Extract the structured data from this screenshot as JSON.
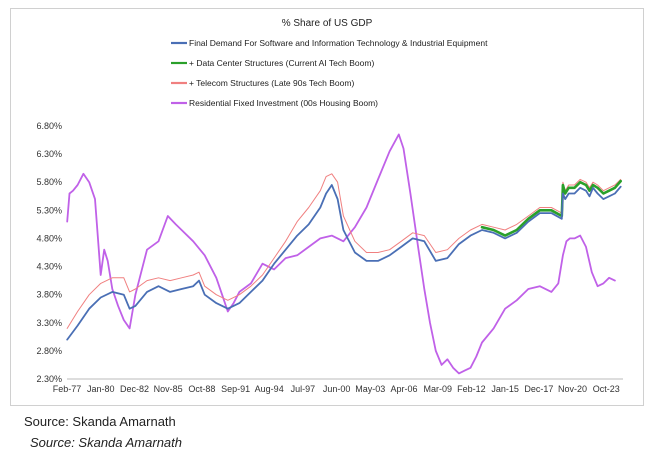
{
  "source_primary": "Source: Skanda Amarnath",
  "source_italic": "Source: Skanda Amarnath",
  "chart_data": {
    "type": "line",
    "title": "% Share of US GDP",
    "xlabel": "",
    "ylabel": "",
    "ylim": [
      2.3,
      6.8
    ],
    "yticks": [
      "6.80%",
      "6.30%",
      "5.80%",
      "5.30%",
      "4.80%",
      "4.30%",
      "3.80%",
      "3.30%",
      "2.80%",
      "2.30%"
    ],
    "ytick_values": [
      6.8,
      6.3,
      5.8,
      5.3,
      4.8,
      4.3,
      3.8,
      3.3,
      2.8,
      2.3
    ],
    "xlim": [
      1977.08,
      2025.2
    ],
    "xticks": [
      "Feb-77",
      "Jan-80",
      "Dec-82",
      "Nov-85",
      "Oct-88",
      "Sep-91",
      "Aug-94",
      "Jul-97",
      "Jun-00",
      "May-03",
      "Apr-06",
      "Mar-09",
      "Feb-12",
      "Jan-15",
      "Dec-17",
      "Nov-20",
      "Oct-23"
    ],
    "xtick_values": [
      1977.08,
      1980.0,
      1982.92,
      1985.83,
      1988.75,
      1991.67,
      1994.58,
      1997.5,
      2000.42,
      2003.33,
      2006.25,
      2009.17,
      2012.08,
      2015.0,
      2017.92,
      2020.83,
      2023.75
    ],
    "grid": false,
    "legend_position": "top",
    "series": [
      {
        "name": "Final Demand For Software and Information Technology & Industrial Equipment",
        "color": "#4a6fb5",
        "x": [
          1977.1,
          1978,
          1979,
          1980,
          1981,
          1982,
          1982.5,
          1983,
          1984,
          1985,
          1986,
          1987,
          1988,
          1988.5,
          1989,
          1990,
          1991,
          1992,
          1993,
          1994,
          1995,
          1996,
          1997,
          1998,
          1999,
          1999.5,
          2000,
          2000.5,
          2001,
          2002,
          2003,
          2004,
          2005,
          2006,
          2007,
          2008,
          2009,
          2010,
          2011,
          2012,
          2013,
          2014,
          2015,
          2016,
          2017,
          2018,
          2019,
          2019.9,
          2020,
          2020.2,
          2020.5,
          2021,
          2021.5,
          2022,
          2022.3,
          2022.6,
          2023,
          2023.5,
          2024,
          2024.5,
          2025
        ],
        "values": [
          3.0,
          3.25,
          3.55,
          3.75,
          3.85,
          3.8,
          3.55,
          3.6,
          3.85,
          3.95,
          3.85,
          3.9,
          3.95,
          4.05,
          3.8,
          3.65,
          3.55,
          3.65,
          3.85,
          4.05,
          4.35,
          4.6,
          4.85,
          5.05,
          5.35,
          5.6,
          5.75,
          5.5,
          4.95,
          4.55,
          4.4,
          4.4,
          4.5,
          4.65,
          4.8,
          4.75,
          4.4,
          4.45,
          4.7,
          4.85,
          4.95,
          4.9,
          4.8,
          4.9,
          5.1,
          5.25,
          5.25,
          5.15,
          5.6,
          5.5,
          5.6,
          5.6,
          5.7,
          5.65,
          5.55,
          5.7,
          5.6,
          5.5,
          5.55,
          5.6,
          5.72
        ]
      },
      {
        "name": "+ Data Center Structures (Current AI Tech Boom)",
        "color": "#2aa02a",
        "x": [
          2013,
          2014,
          2015,
          2016,
          2017,
          2018,
          2019,
          2019.9,
          2020,
          2020.2,
          2020.5,
          2021,
          2021.5,
          2022,
          2022.3,
          2022.6,
          2023,
          2023.5,
          2024,
          2024.5,
          2025
        ],
        "values": [
          5.0,
          4.95,
          4.85,
          4.95,
          5.15,
          5.3,
          5.3,
          5.2,
          5.75,
          5.6,
          5.7,
          5.7,
          5.8,
          5.75,
          5.65,
          5.75,
          5.7,
          5.6,
          5.65,
          5.7,
          5.82
        ]
      },
      {
        "name": "+ Telecom Structures (Late 90s Tech Boom)",
        "color": "#f08080",
        "x": [
          1977.1,
          1978,
          1979,
          1980,
          1981,
          1982,
          1982.5,
          1983,
          1984,
          1985,
          1986,
          1987,
          1988,
          1988.5,
          1989,
          1990,
          1991,
          1992,
          1993,
          1994,
          1995,
          1996,
          1997,
          1998,
          1999,
          1999.5,
          2000,
          2000.5,
          2001,
          2002,
          2003,
          2004,
          2005,
          2006,
          2007,
          2008,
          2009,
          2010,
          2011,
          2012,
          2013,
          2014,
          2015,
          2016,
          2017,
          2018,
          2019,
          2019.9,
          2020,
          2020.2,
          2020.5,
          2021,
          2021.5,
          2022,
          2022.3,
          2022.6,
          2023,
          2023.5,
          2024,
          2024.5,
          2025
        ],
        "values": [
          3.2,
          3.5,
          3.8,
          4.0,
          4.1,
          4.1,
          3.85,
          3.9,
          4.05,
          4.1,
          4.05,
          4.1,
          4.15,
          4.2,
          3.95,
          3.8,
          3.7,
          3.8,
          3.95,
          4.15,
          4.45,
          4.75,
          5.1,
          5.35,
          5.65,
          5.9,
          5.95,
          5.8,
          5.2,
          4.75,
          4.55,
          4.55,
          4.6,
          4.75,
          4.9,
          4.85,
          4.55,
          4.6,
          4.8,
          4.95,
          5.05,
          5.0,
          4.95,
          5.05,
          5.2,
          5.35,
          5.35,
          5.25,
          5.8,
          5.65,
          5.75,
          5.75,
          5.85,
          5.8,
          5.7,
          5.8,
          5.75,
          5.65,
          5.7,
          5.75,
          5.85
        ]
      },
      {
        "name": "Residential Fixed Investment (00s Housing Boom)",
        "color": "#c061e8",
        "x": [
          1977.1,
          1977.3,
          1977.6,
          1978,
          1978.5,
          1979,
          1979.5,
          1980,
          1980.3,
          1980.6,
          1981,
          1981.5,
          1982,
          1982.5,
          1983,
          1984,
          1985,
          1985.8,
          1986.5,
          1987,
          1988,
          1989,
          1990,
          1990.5,
          1991,
          1991.5,
          1992,
          1993,
          1994,
          1995,
          1996,
          1997,
          1998,
          1999,
          2000,
          2001,
          2002,
          2003,
          2004,
          2005,
          2005.8,
          2006.2,
          2006.8,
          2007.5,
          2008,
          2008.5,
          2009,
          2009.5,
          2010,
          2010.5,
          2011,
          2011.5,
          2012,
          2012.5,
          2013,
          2014,
          2015,
          2016,
          2017,
          2018,
          2019,
          2019.6,
          2020,
          2020.3,
          2020.6,
          2021,
          2021.5,
          2022,
          2022.5,
          2023,
          2023.5,
          2024,
          2024.5
        ],
        "values": [
          5.1,
          5.6,
          5.65,
          5.75,
          5.95,
          5.8,
          5.5,
          4.15,
          4.6,
          4.4,
          3.9,
          3.6,
          3.35,
          3.2,
          3.8,
          4.6,
          4.75,
          5.2,
          5.05,
          4.95,
          4.75,
          4.5,
          4.1,
          3.8,
          3.5,
          3.65,
          3.85,
          4.0,
          4.35,
          4.25,
          4.45,
          4.5,
          4.65,
          4.8,
          4.85,
          4.75,
          5.0,
          5.35,
          5.85,
          6.35,
          6.65,
          6.4,
          5.6,
          4.6,
          3.9,
          3.3,
          2.8,
          2.55,
          2.65,
          2.5,
          2.4,
          2.45,
          2.5,
          2.7,
          2.95,
          3.2,
          3.55,
          3.7,
          3.9,
          3.95,
          3.85,
          4.0,
          4.5,
          4.75,
          4.8,
          4.8,
          4.85,
          4.65,
          4.2,
          3.95,
          4.0,
          4.1,
          4.05
        ]
      }
    ]
  }
}
